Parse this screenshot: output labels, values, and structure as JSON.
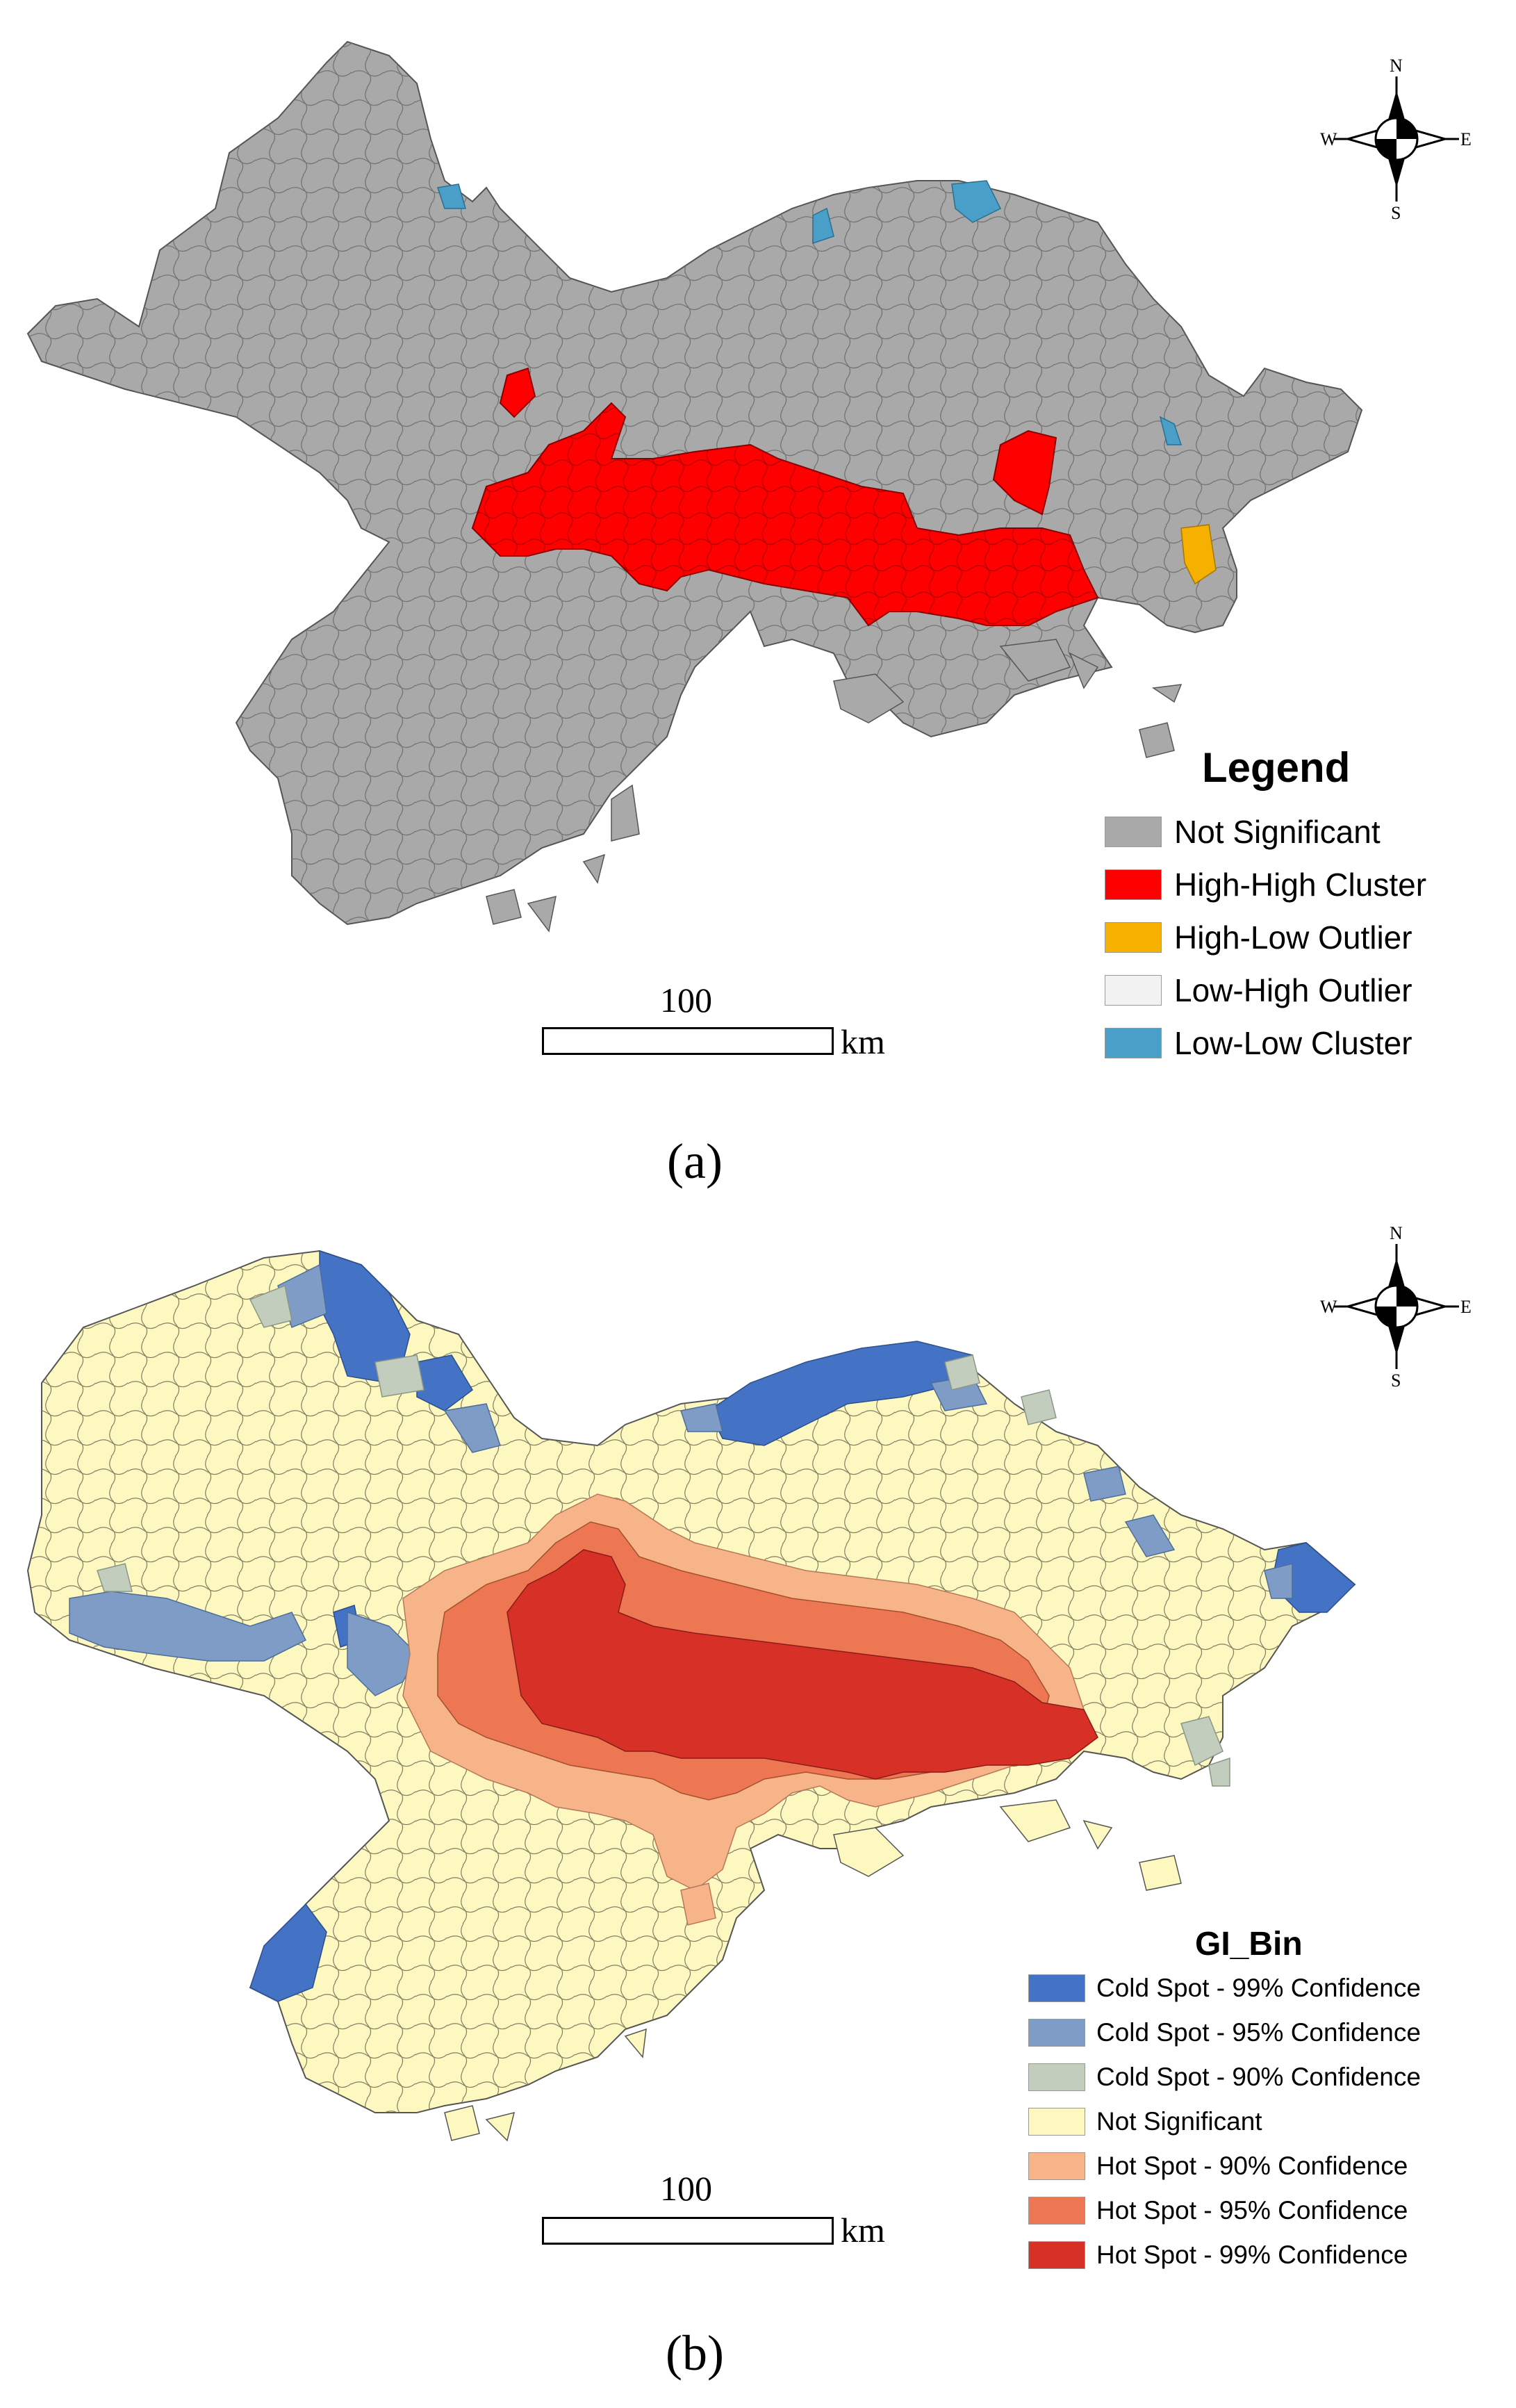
{
  "panel_a": {
    "legend_title": "Legend",
    "legend": [
      {
        "label": "Not Significant",
        "color": "#a9a9a9"
      },
      {
        "label": "High-High Cluster",
        "color": "#ff0000"
      },
      {
        "label": "High-Low Outlier",
        "color": "#f5b000"
      },
      {
        "label": "Low-High Outlier",
        "color": "#f2f2f2"
      },
      {
        "label": "Low-Low Cluster",
        "color": "#4a9fc8"
      }
    ],
    "scale_value": "100",
    "scale_unit": "km",
    "caption": "(a)",
    "compass": {
      "n": "N",
      "s": "S",
      "e": "E",
      "w": "W"
    }
  },
  "panel_b": {
    "legend_title": "GI_Bin",
    "legend": [
      {
        "label": "Cold Spot - 99% Confidence",
        "color": "#4472c4"
      },
      {
        "label": "Cold Spot - 95% Confidence",
        "color": "#7f9cc6"
      },
      {
        "label": "Cold Spot - 90% Confidence",
        "color": "#c2cdbd"
      },
      {
        "label": "Not Significant",
        "color": "#fdf7c0"
      },
      {
        "label": "Hot Spot - 90% Confidence",
        "color": "#f6b488"
      },
      {
        "label": "Hot Spot - 95% Confidence",
        "color": "#ec7752"
      },
      {
        "label": "Hot Spot - 99% Confidence",
        "color": "#d73027"
      }
    ],
    "scale_value": "100",
    "scale_unit": "km",
    "caption": "(b)",
    "compass": {
      "n": "N",
      "s": "S",
      "e": "E",
      "w": "W"
    }
  }
}
